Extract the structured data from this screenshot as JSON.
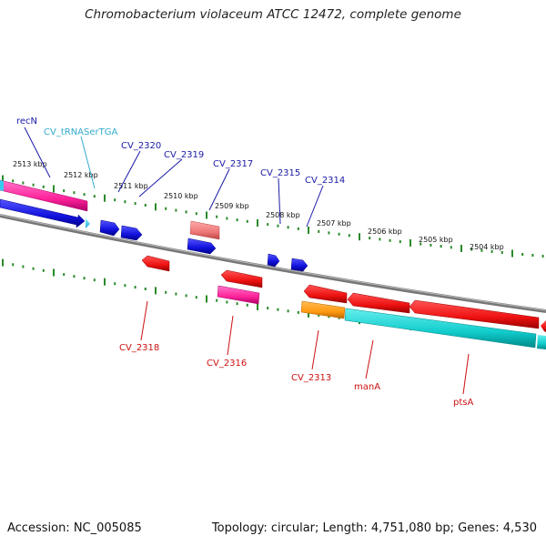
{
  "title": "Chromobacterium violaceum ATCC 12472, complete genome",
  "footer": {
    "accession": "Accession: NC_005085",
    "summary": "Topology: circular; Length: 4,751,080 bp; Genes: 4,530"
  },
  "colors": {
    "backbone": "#888888",
    "ticks": "#2a8a2a",
    "label_forward": "#1a1aa6",
    "label_reverse": "#cc1111",
    "label_trna": "#33aacc"
  },
  "ticks": [
    "2513 kbp",
    "2512 kbp",
    "2511 kbp",
    "2510 kbp",
    "2509 kbp",
    "2508 kbp",
    "2507 kbp",
    "2506 kbp",
    "2505 kbp",
    "2504 kbp"
  ],
  "features": [
    {
      "name": "recN",
      "strand": "forward",
      "color": "#ff2299",
      "icon": "gene-arrow"
    },
    {
      "name": "CV_tRNASerTGA",
      "strand": "forward",
      "color": "#33ccee",
      "icon": "trna-arrow"
    },
    {
      "name": "CV_2320",
      "strand": "forward",
      "color": "#1111dd",
      "icon": "gene-arrow"
    },
    {
      "name": "CV_2319",
      "strand": "forward",
      "color": "#1111dd",
      "icon": "gene-arrow"
    },
    {
      "name": "CV_2317",
      "strand": "forward",
      "color": "#ee7777",
      "icon": "gene-arrow"
    },
    {
      "name": "CV_2315",
      "strand": "forward",
      "color": "#1111dd",
      "icon": "gene-arrow"
    },
    {
      "name": "CV_2314",
      "strand": "forward",
      "color": "#1111dd",
      "icon": "gene-arrow"
    },
    {
      "name": "CV_2318",
      "strand": "reverse",
      "color": "#ee1111",
      "icon": "gene-arrow"
    },
    {
      "name": "CV_2316",
      "strand": "reverse",
      "color": "#ff2299",
      "icon": "gene-arrow"
    },
    {
      "name": "CV_2313",
      "strand": "reverse",
      "color": "#ff9911",
      "icon": "gene-arrow"
    },
    {
      "name": "manA",
      "strand": "reverse",
      "color": "#ee1111",
      "icon": "gene-arrow"
    },
    {
      "name": "ptsA",
      "strand": "reverse",
      "color": "#11cccc",
      "icon": "gene-arrow"
    }
  ]
}
